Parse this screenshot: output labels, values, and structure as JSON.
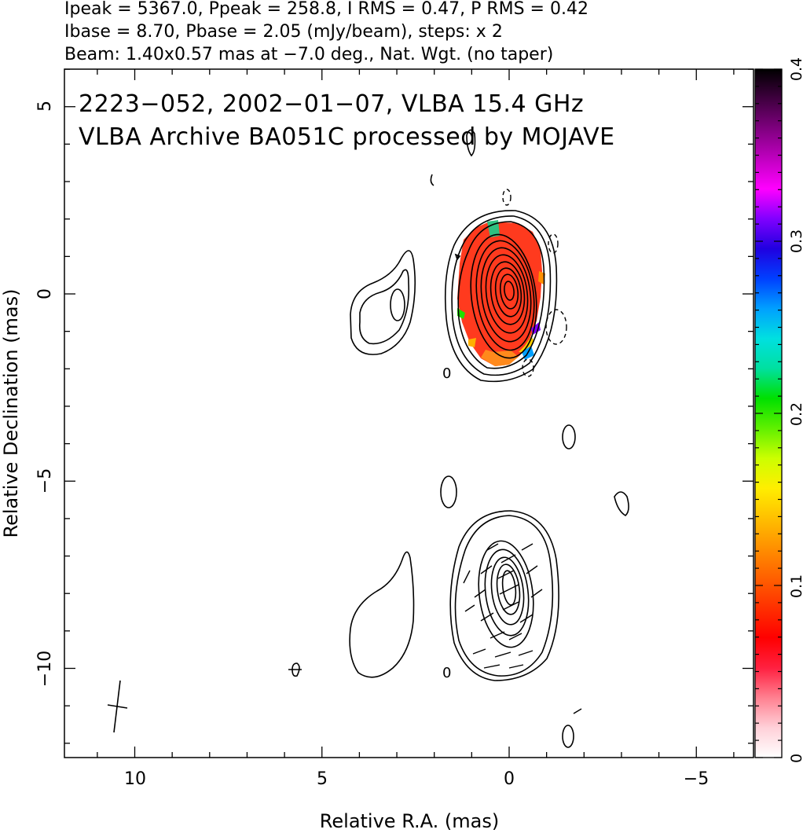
{
  "header": {
    "line1": "Ipeak = 5367.0, Ppeak = 258.8, I RMS = 0.47, P RMS = 0.42",
    "line2": "Ibase = 8.70, Pbase = 2.05 (mJy/beam), steps: x 2",
    "line3": "Beam: 1.40x0.57 mas at −7.0 deg., Nat. Wgt. (no taper)"
  },
  "chart_data": {
    "type": "heatmap",
    "title": "2223−052, 2002−01−07, VLBA 15.4 GHz",
    "subtitle": "VLBA Archive BA051C processed by MOJAVE",
    "xlabel": "Relative R.A. (mas)",
    "ylabel": "Relative Declination (mas)",
    "xlim": [
      12,
      -7
    ],
    "ylim": [
      -12.3,
      6
    ],
    "x_ticks": [
      10,
      5,
      0,
      -5
    ],
    "x_tick_labels": [
      "10",
      "5",
      "0",
      "−5"
    ],
    "y_ticks": [
      5,
      0,
      -5,
      -10
    ],
    "y_tick_labels": [
      "5",
      "0",
      "−5",
      "−10"
    ],
    "colorbar": {
      "min": 0,
      "max": 0.4,
      "ticks": [
        0,
        0.1,
        0.2,
        0.3,
        0.4
      ],
      "tick_labels": [
        "0",
        "0.1",
        "0.2",
        "0.3",
        "0.4"
      ],
      "colors": [
        "#ffffff",
        "#ffd0d8",
        "#ff8090",
        "#ff2040",
        "#ff0000",
        "#ff3000",
        "#ff6000",
        "#ff9000",
        "#ffc000",
        "#ffee00",
        "#ccff00",
        "#60f000",
        "#00e000",
        "#00e0a0",
        "#00e0e0",
        "#00a0ff",
        "#0040ff",
        "#2000e0",
        "#8000ff",
        "#ff00ff",
        "#c000c0",
        "#800080",
        "#400040",
        "#000000"
      ]
    },
    "top_panel": {
      "core": {
        "ra": 0.0,
        "dec": -0.1
      },
      "polarization_fraction_typical": 0.05,
      "zero_label": "0",
      "zero_label_pos": {
        "ra": 1.7,
        "dec": -2.1
      }
    },
    "bottom_panel": {
      "core": {
        "ra": 0.0,
        "dec": -7.9
      },
      "zero_label": "0",
      "zero_label_pos": {
        "ra": 1.7,
        "dec": -10.1
      }
    },
    "beam": {
      "major_mas": 1.4,
      "minor_mas": 0.57,
      "pa_deg": -7.0,
      "position": {
        "ra": 10.5,
        "dec": -11.0
      }
    }
  }
}
